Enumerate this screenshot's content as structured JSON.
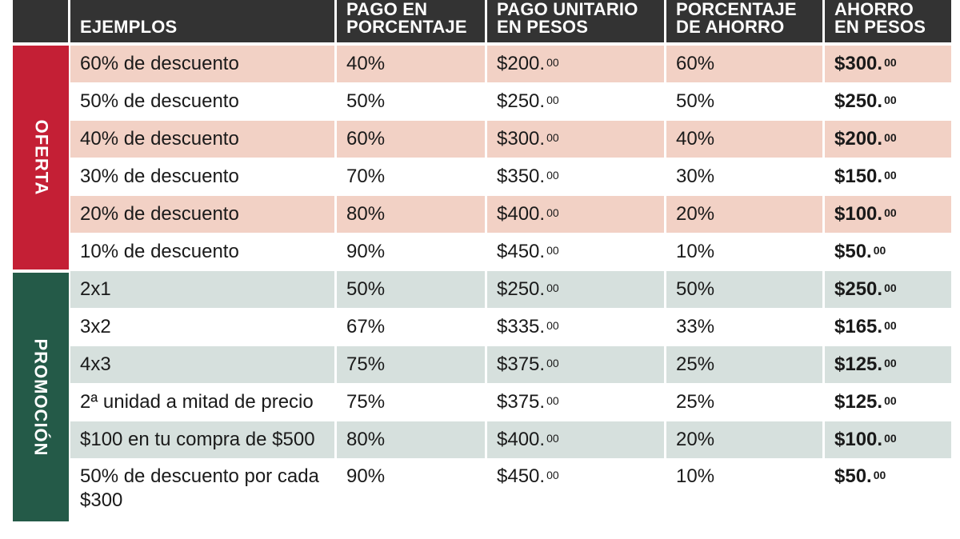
{
  "headers": [
    {
      "lines": [
        "EJEMPLOS"
      ]
    },
    {
      "lines": [
        "PAGO EN",
        "PORCENTAJE"
      ]
    },
    {
      "lines": [
        "PAGO UNITARIO",
        "EN PESOS"
      ]
    },
    {
      "lines": [
        "PORCENTAJE",
        "DE AHORRO"
      ]
    },
    {
      "lines": [
        "AHORRO",
        "EN PESOS"
      ]
    }
  ],
  "groups": {
    "oferta": "OFERTA",
    "promocion": "PROMOCIÓN"
  },
  "rows": [
    {
      "ejemplo": "60% de descuento",
      "pago_pct": "40%",
      "pago_unit": "$200.",
      "pago_unit_cents": "00",
      "ahorro_pct": "60%",
      "ahorro": "$300.",
      "ahorro_cents": "00"
    },
    {
      "ejemplo": "50% de descuento",
      "pago_pct": "50%",
      "pago_unit": "$250.",
      "pago_unit_cents": "00",
      "ahorro_pct": "50%",
      "ahorro": "$250.",
      "ahorro_cents": "00"
    },
    {
      "ejemplo": "40% de descuento",
      "pago_pct": "60%",
      "pago_unit": "$300.",
      "pago_unit_cents": "00",
      "ahorro_pct": "40%",
      "ahorro": "$200.",
      "ahorro_cents": "00"
    },
    {
      "ejemplo": "30% de descuento",
      "pago_pct": "70%",
      "pago_unit": "$350.",
      "pago_unit_cents": "00",
      "ahorro_pct": "30%",
      "ahorro": "$150.",
      "ahorro_cents": "00"
    },
    {
      "ejemplo": "20% de descuento",
      "pago_pct": "80%",
      "pago_unit": "$400.",
      "pago_unit_cents": "00",
      "ahorro_pct": "20%",
      "ahorro": "$100.",
      "ahorro_cents": "00"
    },
    {
      "ejemplo": "10% de descuento",
      "pago_pct": "90%",
      "pago_unit": "$450.",
      "pago_unit_cents": "00",
      "ahorro_pct": "10%",
      "ahorro": "$50.",
      "ahorro_cents": "00"
    },
    {
      "ejemplo": "2x1",
      "pago_pct": "50%",
      "pago_unit": "$250.",
      "pago_unit_cents": "00",
      "ahorro_pct": "50%",
      "ahorro": "$250.",
      "ahorro_cents": "00"
    },
    {
      "ejemplo": "3x2",
      "pago_pct": "67%",
      "pago_unit": "$335.",
      "pago_unit_cents": "00",
      "ahorro_pct": "33%",
      "ahorro": "$165.",
      "ahorro_cents": "00"
    },
    {
      "ejemplo": "4x3",
      "pago_pct": "75%",
      "pago_unit": "$375.",
      "pago_unit_cents": "00",
      "ahorro_pct": "25%",
      "ahorro": "$125.",
      "ahorro_cents": "00"
    },
    {
      "ejemplo": "2ª unidad a mitad de precio",
      "pago_pct": "75%",
      "pago_unit": "$375.",
      "pago_unit_cents": "00",
      "ahorro_pct": "25%",
      "ahorro": "$125.",
      "ahorro_cents": "00"
    },
    {
      "ejemplo": "$100 en tu compra de $500",
      "pago_pct": "80%",
      "pago_unit": "$400.",
      "pago_unit_cents": "00",
      "ahorro_pct": "20%",
      "ahorro": "$100.",
      "ahorro_cents": "00"
    },
    {
      "ejemplo": "50% de descuento por cada $300",
      "pago_pct": "90%",
      "pago_unit": "$450.",
      "pago_unit_cents": "00",
      "ahorro_pct": "10%",
      "ahorro": "$50.",
      "ahorro_cents": "00"
    }
  ]
}
